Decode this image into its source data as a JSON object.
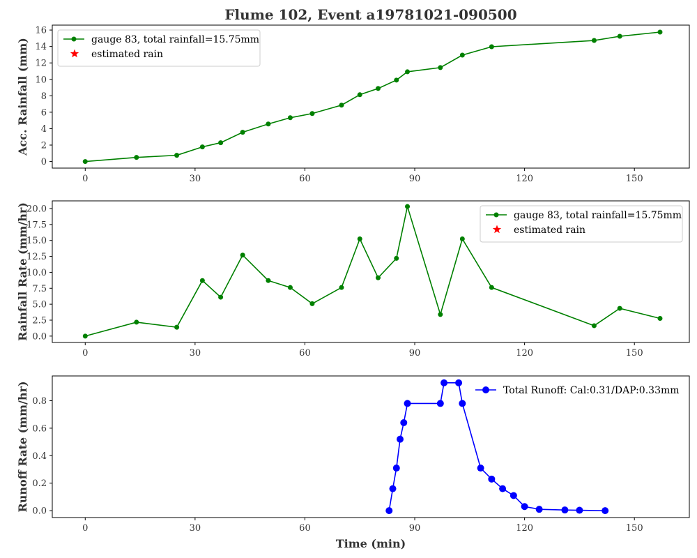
{
  "figure": {
    "title": "Flume 102, Event a19781021-090500"
  },
  "chart_data": [
    {
      "type": "line",
      "ylabel": "Acc. Rainfall (mm)",
      "xlabel": "",
      "xlim": [
        -9,
        165
      ],
      "ylim": [
        -0.8,
        16.6
      ],
      "xticks": [
        0,
        30,
        60,
        90,
        120,
        150
      ],
      "yticks": [
        0,
        2,
        4,
        6,
        8,
        10,
        12,
        14,
        16
      ],
      "legend_position": "top-left",
      "series": [
        {
          "name": "gauge 83, total rainfall=15.75mm",
          "color": "#008000",
          "marker": "circle",
          "x": [
            0,
            14,
            25,
            32,
            37,
            43,
            50,
            56,
            62,
            70,
            75,
            80,
            85,
            88,
            97,
            103,
            111,
            139,
            146,
            157
          ],
          "y": [
            0,
            0.5,
            0.76,
            1.78,
            2.29,
            3.56,
            4.57,
            5.33,
            5.84,
            6.86,
            8.13,
            8.89,
            9.91,
            10.92,
            11.43,
            12.95,
            13.97,
            14.73,
            15.24,
            15.75
          ]
        },
        {
          "name": "estimated rain",
          "color": "#ff0000",
          "marker": "star",
          "x": [],
          "y": []
        }
      ]
    },
    {
      "type": "line",
      "ylabel": "Rainfall Rate (mm/hr)",
      "xlabel": "",
      "xlim": [
        -9,
        165
      ],
      "ylim": [
        -1.0,
        21.2
      ],
      "xticks": [
        0,
        30,
        60,
        90,
        120,
        150
      ],
      "yticks": [
        0.0,
        2.5,
        5.0,
        7.5,
        10.0,
        12.5,
        15.0,
        17.5,
        20.0
      ],
      "ytick_labels": [
        "0.0",
        "2.5",
        "5.0",
        "7.5",
        "10.0",
        "12.5",
        "15.0",
        "17.5",
        "20.0"
      ],
      "legend_position": "top-right",
      "series": [
        {
          "name": "gauge 83, total rainfall=15.75mm",
          "color": "#008000",
          "marker": "circle",
          "x": [
            0,
            14,
            25,
            32,
            37,
            43,
            50,
            56,
            62,
            70,
            75,
            80,
            85,
            88,
            97,
            103,
            111,
            139,
            146,
            157
          ],
          "y": [
            0,
            2.18,
            1.39,
            8.71,
            6.1,
            12.7,
            8.71,
            7.62,
            5.08,
            7.62,
            15.24,
            9.14,
            12.19,
            20.32,
            3.39,
            15.24,
            7.62,
            1.63,
            4.35,
            2.77
          ]
        },
        {
          "name": "estimated rain",
          "color": "#ff0000",
          "marker": "star",
          "x": [],
          "y": []
        }
      ]
    },
    {
      "type": "line",
      "ylabel": "Runoff Rate (mm/hr)",
      "xlabel": "Time (min)",
      "xlim": [
        -9,
        165
      ],
      "ylim": [
        -0.05,
        0.98
      ],
      "xticks": [
        0,
        30,
        60,
        90,
        120,
        150
      ],
      "yticks": [
        0.0,
        0.2,
        0.4,
        0.6,
        0.8
      ],
      "ytick_labels": [
        "0.0",
        "0.2",
        "0.4",
        "0.6",
        "0.8"
      ],
      "legend_position": "top-right",
      "series": [
        {
          "name": "Total Runoff: Cal:0.31/DAP:0.33mm",
          "color": "#0000ff",
          "marker": "circle",
          "x": [
            83,
            84,
            85,
            86,
            87,
            88,
            97,
            98,
            102,
            103,
            108,
            111,
            114,
            117,
            120,
            124,
            131,
            135,
            142
          ],
          "y": [
            0.0,
            0.16,
            0.31,
            0.52,
            0.64,
            0.78,
            0.78,
            0.93,
            0.93,
            0.78,
            0.31,
            0.23,
            0.16,
            0.11,
            0.03,
            0.01,
            0.005,
            0.003,
            0.0
          ]
        }
      ]
    }
  ]
}
